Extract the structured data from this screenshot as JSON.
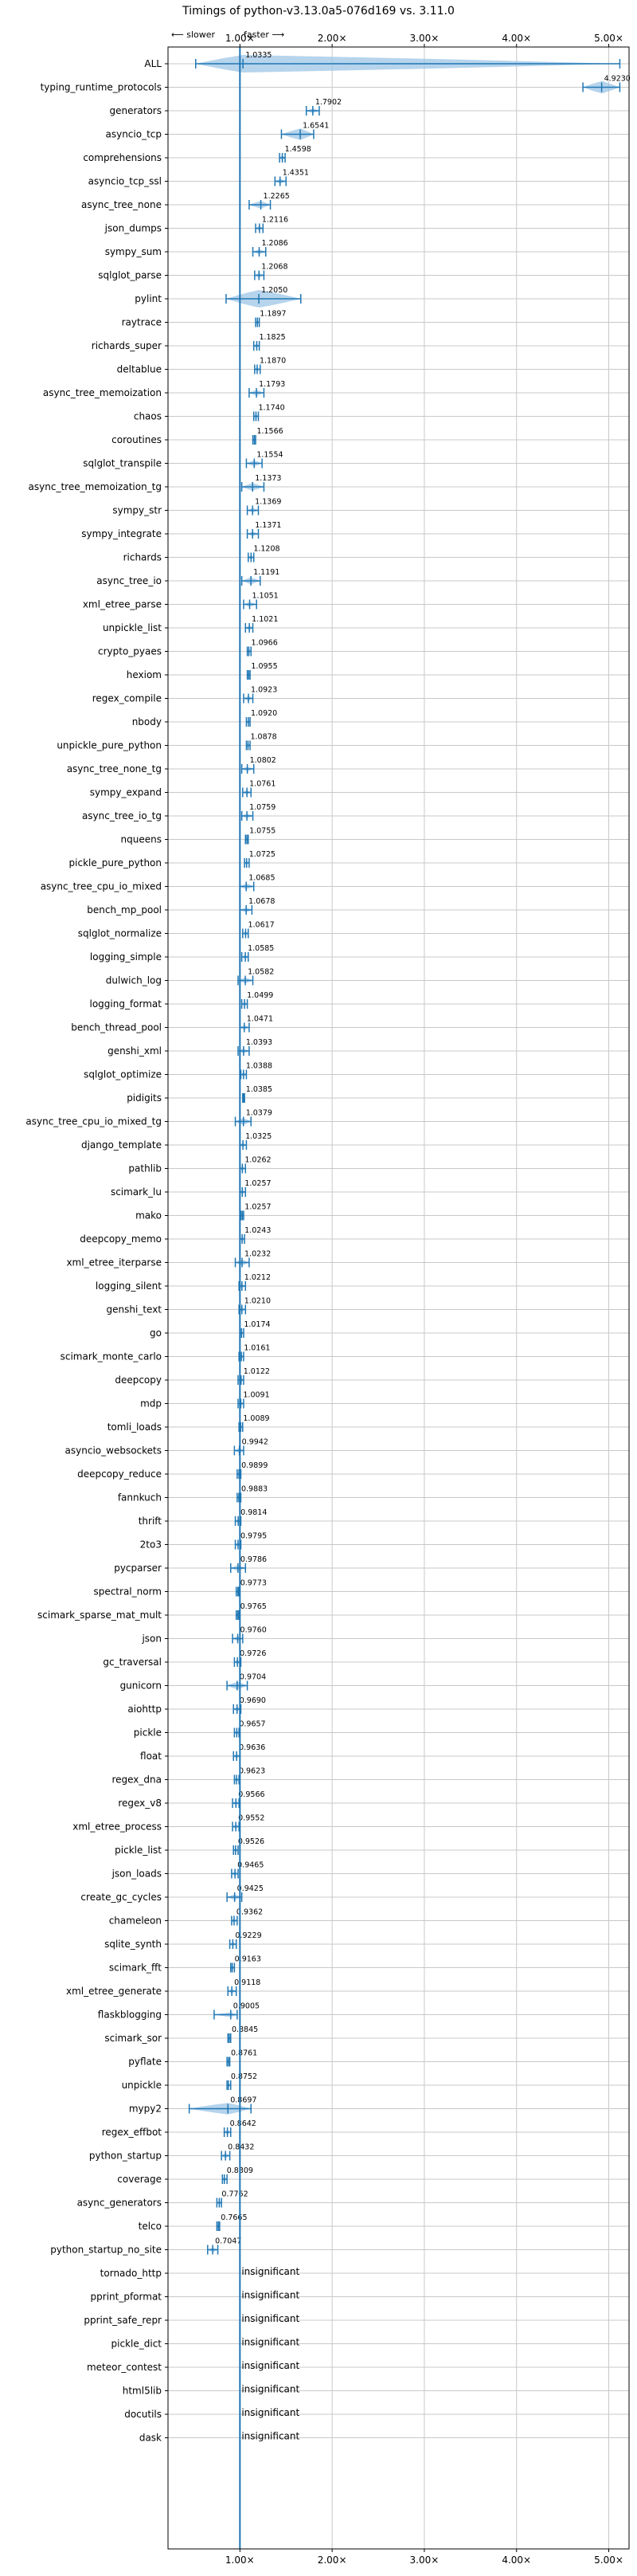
{
  "chart_data": {
    "type": "violin",
    "title": "Timings of python-v3.13.0a5-076d169 vs. 3.11.0",
    "direction_labels": {
      "slower": "⟵ slower",
      "faster": "faster ⟶"
    },
    "xlim": [
      0.22,
      5.22
    ],
    "x_ticks": [
      1,
      2,
      3,
      4,
      5
    ],
    "x_tick_labels": [
      "1.00×",
      "2.00×",
      "3.00×",
      "4.00×",
      "5.00×"
    ],
    "grid": true,
    "reference_line": 1.0,
    "insignificant_label": "insignificant",
    "benchmarks": [
      {
        "name": "ALL",
        "value": 1.0335,
        "label": "1.0335",
        "lo": 0.52,
        "hi": 5.12,
        "spread": 0.45
      },
      {
        "name": "typing_runtime_protocols",
        "value": 4.923,
        "label": "4.9230",
        "lo": 4.72,
        "hi": 5.12,
        "spread": 0.13
      },
      {
        "name": "generators",
        "value": 1.7902,
        "label": "1.7902",
        "lo": 1.72,
        "hi": 1.86,
        "spread": 0.05
      },
      {
        "name": "asyncio_tcp",
        "value": 1.6541,
        "label": "1.6541",
        "lo": 1.45,
        "hi": 1.8,
        "spread": 0.12
      },
      {
        "name": "comprehensions",
        "value": 1.4598,
        "label": "1.4598",
        "lo": 1.43,
        "hi": 1.49,
        "spread": 0.03
      },
      {
        "name": "asyncio_tcp_ssl",
        "value": 1.4351,
        "label": "1.4351",
        "lo": 1.38,
        "hi": 1.5,
        "spread": 0.05
      },
      {
        "name": "async_tree_none",
        "value": 1.2265,
        "label": "1.2265",
        "lo": 1.1,
        "hi": 1.33,
        "spread": 0.08
      },
      {
        "name": "json_dumps",
        "value": 1.2116,
        "label": "1.2116",
        "lo": 1.17,
        "hi": 1.25,
        "spread": 0.04
      },
      {
        "name": "sympy_sum",
        "value": 1.2086,
        "label": "1.2086",
        "lo": 1.14,
        "hi": 1.28,
        "spread": 0.05
      },
      {
        "name": "sqlglot_parse",
        "value": 1.2068,
        "label": "1.2068",
        "lo": 1.16,
        "hi": 1.26,
        "spread": 0.04
      },
      {
        "name": "pylint",
        "value": 1.205,
        "label": "1.2050",
        "lo": 0.85,
        "hi": 1.66,
        "spread": 0.3
      },
      {
        "name": "raytrace",
        "value": 1.1897,
        "label": "1.1897",
        "lo": 1.17,
        "hi": 1.21,
        "spread": 0.02
      },
      {
        "name": "richards_super",
        "value": 1.1825,
        "label": "1.1825",
        "lo": 1.15,
        "hi": 1.21,
        "spread": 0.03
      },
      {
        "name": "deltablue",
        "value": 1.187,
        "label": "1.1870",
        "lo": 1.16,
        "hi": 1.22,
        "spread": 0.03
      },
      {
        "name": "async_tree_memoization",
        "value": 1.1793,
        "label": "1.1793",
        "lo": 1.1,
        "hi": 1.26,
        "spread": 0.06
      },
      {
        "name": "chaos",
        "value": 1.174,
        "label": "1.1740",
        "lo": 1.15,
        "hi": 1.2,
        "spread": 0.03
      },
      {
        "name": "coroutines",
        "value": 1.1566,
        "label": "1.1566",
        "lo": 1.14,
        "hi": 1.17,
        "spread": 0.02
      },
      {
        "name": "sqlglot_transpile",
        "value": 1.1554,
        "label": "1.1554",
        "lo": 1.07,
        "hi": 1.24,
        "spread": 0.06
      },
      {
        "name": "async_tree_memoization_tg",
        "value": 1.1373,
        "label": "1.1373",
        "lo": 1.02,
        "hi": 1.26,
        "spread": 0.08
      },
      {
        "name": "sympy_str",
        "value": 1.1369,
        "label": "1.1369",
        "lo": 1.08,
        "hi": 1.2,
        "spread": 0.04
      },
      {
        "name": "sympy_integrate",
        "value": 1.1371,
        "label": "1.1371",
        "lo": 1.08,
        "hi": 1.2,
        "spread": 0.04
      },
      {
        "name": "richards",
        "value": 1.1208,
        "label": "1.1208",
        "lo": 1.09,
        "hi": 1.15,
        "spread": 0.03
      },
      {
        "name": "async_tree_io",
        "value": 1.1191,
        "label": "1.1191",
        "lo": 1.02,
        "hi": 1.22,
        "spread": 0.07
      },
      {
        "name": "xml_etree_parse",
        "value": 1.1051,
        "label": "1.1051",
        "lo": 1.04,
        "hi": 1.18,
        "spread": 0.05
      },
      {
        "name": "unpickle_list",
        "value": 1.1021,
        "label": "1.1021",
        "lo": 1.06,
        "hi": 1.14,
        "spread": 0.03
      },
      {
        "name": "crypto_pyaes",
        "value": 1.0966,
        "label": "1.0966",
        "lo": 1.08,
        "hi": 1.12,
        "spread": 0.02
      },
      {
        "name": "hexiom",
        "value": 1.0955,
        "label": "1.0955",
        "lo": 1.08,
        "hi": 1.11,
        "spread": 0.02
      },
      {
        "name": "regex_compile",
        "value": 1.0923,
        "label": "1.0923",
        "lo": 1.04,
        "hi": 1.14,
        "spread": 0.04
      },
      {
        "name": "nbody",
        "value": 1.092,
        "label": "1.0920",
        "lo": 1.07,
        "hi": 1.11,
        "spread": 0.02
      },
      {
        "name": "unpickle_pure_python",
        "value": 1.0878,
        "label": "1.0878",
        "lo": 1.07,
        "hi": 1.11,
        "spread": 0.02
      },
      {
        "name": "async_tree_none_tg",
        "value": 1.0802,
        "label": "1.0802",
        "lo": 1.02,
        "hi": 1.15,
        "spread": 0.05
      },
      {
        "name": "sympy_expand",
        "value": 1.0761,
        "label": "1.0761",
        "lo": 1.03,
        "hi": 1.12,
        "spread": 0.04
      },
      {
        "name": "async_tree_io_tg",
        "value": 1.0759,
        "label": "1.0759",
        "lo": 1.02,
        "hi": 1.14,
        "spread": 0.05
      },
      {
        "name": "nqueens",
        "value": 1.0755,
        "label": "1.0755",
        "lo": 1.06,
        "hi": 1.09,
        "spread": 0.02
      },
      {
        "name": "pickle_pure_python",
        "value": 1.0725,
        "label": "1.0725",
        "lo": 1.05,
        "hi": 1.1,
        "spread": 0.02
      },
      {
        "name": "async_tree_cpu_io_mixed",
        "value": 1.0685,
        "label": "1.0685",
        "lo": 1.0,
        "hi": 1.15,
        "spread": 0.06
      },
      {
        "name": "bench_mp_pool",
        "value": 1.0678,
        "label": "1.0678",
        "lo": 1.0,
        "hi": 1.13,
        "spread": 0.05
      },
      {
        "name": "sqlglot_normalize",
        "value": 1.0617,
        "label": "1.0617",
        "lo": 1.03,
        "hi": 1.09,
        "spread": 0.03
      },
      {
        "name": "logging_simple",
        "value": 1.0585,
        "label": "1.0585",
        "lo": 1.02,
        "hi": 1.09,
        "spread": 0.03
      },
      {
        "name": "dulwich_log",
        "value": 1.0582,
        "label": "1.0582",
        "lo": 0.98,
        "hi": 1.14,
        "spread": 0.06
      },
      {
        "name": "logging_format",
        "value": 1.0499,
        "label": "1.0499",
        "lo": 1.02,
        "hi": 1.08,
        "spread": 0.03
      },
      {
        "name": "bench_thread_pool",
        "value": 1.0471,
        "label": "1.0471",
        "lo": 1.0,
        "hi": 1.1,
        "spread": 0.04
      },
      {
        "name": "genshi_xml",
        "value": 1.0393,
        "label": "1.0393",
        "lo": 0.98,
        "hi": 1.1,
        "spread": 0.05
      },
      {
        "name": "sqlglot_optimize",
        "value": 1.0388,
        "label": "1.0388",
        "lo": 1.01,
        "hi": 1.07,
        "spread": 0.03
      },
      {
        "name": "pidigits",
        "value": 1.0385,
        "label": "1.0385",
        "lo": 1.03,
        "hi": 1.05,
        "spread": 0.01
      },
      {
        "name": "async_tree_cpu_io_mixed_tg",
        "value": 1.0379,
        "label": "1.0379",
        "lo": 0.95,
        "hi": 1.12,
        "spread": 0.07
      },
      {
        "name": "django_template",
        "value": 1.0325,
        "label": "1.0325",
        "lo": 1.0,
        "hi": 1.07,
        "spread": 0.03
      },
      {
        "name": "pathlib",
        "value": 1.0262,
        "label": "1.0262",
        "lo": 1.0,
        "hi": 1.06,
        "spread": 0.03
      },
      {
        "name": "scimark_lu",
        "value": 1.0257,
        "label": "1.0257",
        "lo": 1.0,
        "hi": 1.06,
        "spread": 0.03
      },
      {
        "name": "mako",
        "value": 1.0257,
        "label": "1.0257",
        "lo": 1.01,
        "hi": 1.04,
        "spread": 0.02
      },
      {
        "name": "deepcopy_memo",
        "value": 1.0243,
        "label": "1.0243",
        "lo": 1.0,
        "hi": 1.05,
        "spread": 0.02
      },
      {
        "name": "xml_etree_iterparse",
        "value": 1.0232,
        "label": "1.0232",
        "lo": 0.95,
        "hi": 1.1,
        "spread": 0.06
      },
      {
        "name": "logging_silent",
        "value": 1.0212,
        "label": "1.0212",
        "lo": 0.99,
        "hi": 1.06,
        "spread": 0.03
      },
      {
        "name": "genshi_text",
        "value": 1.021,
        "label": "1.0210",
        "lo": 0.99,
        "hi": 1.06,
        "spread": 0.03
      },
      {
        "name": "go",
        "value": 1.0174,
        "label": "1.0174",
        "lo": 1.0,
        "hi": 1.04,
        "spread": 0.02
      },
      {
        "name": "scimark_monte_carlo",
        "value": 1.0161,
        "label": "1.0161",
        "lo": 0.99,
        "hi": 1.04,
        "spread": 0.02
      },
      {
        "name": "deepcopy",
        "value": 1.0122,
        "label": "1.0122",
        "lo": 0.98,
        "hi": 1.04,
        "spread": 0.03
      },
      {
        "name": "mdp",
        "value": 1.0091,
        "label": "1.0091",
        "lo": 0.98,
        "hi": 1.04,
        "spread": 0.03
      },
      {
        "name": "tomli_loads",
        "value": 1.0089,
        "label": "1.0089",
        "lo": 0.99,
        "hi": 1.03,
        "spread": 0.02
      },
      {
        "name": "asyncio_websockets",
        "value": 0.9942,
        "label": "0.9942",
        "lo": 0.94,
        "hi": 1.04,
        "spread": 0.04
      },
      {
        "name": "deepcopy_reduce",
        "value": 0.9899,
        "label": "0.9899",
        "lo": 0.97,
        "hi": 1.01,
        "spread": 0.02
      },
      {
        "name": "fannkuch",
        "value": 0.9883,
        "label": "0.9883",
        "lo": 0.97,
        "hi": 1.01,
        "spread": 0.02
      },
      {
        "name": "thrift",
        "value": 0.9814,
        "label": "0.9814",
        "lo": 0.95,
        "hi": 1.01,
        "spread": 0.03
      },
      {
        "name": "2to3",
        "value": 0.9795,
        "label": "0.9795",
        "lo": 0.95,
        "hi": 1.01,
        "spread": 0.03
      },
      {
        "name": "pycparser",
        "value": 0.9786,
        "label": "0.9786",
        "lo": 0.9,
        "hi": 1.06,
        "spread": 0.06
      },
      {
        "name": "spectral_norm",
        "value": 0.9773,
        "label": "0.9773",
        "lo": 0.96,
        "hi": 0.99,
        "spread": 0.02
      },
      {
        "name": "scimark_sparse_mat_mult",
        "value": 0.9765,
        "label": "0.9765",
        "lo": 0.96,
        "hi": 0.99,
        "spread": 0.02
      },
      {
        "name": "json",
        "value": 0.976,
        "label": "0.9760",
        "lo": 0.92,
        "hi": 1.03,
        "spread": 0.04
      },
      {
        "name": "gc_traversal",
        "value": 0.9726,
        "label": "0.9726",
        "lo": 0.94,
        "hi": 1.01,
        "spread": 0.03
      },
      {
        "name": "gunicorn",
        "value": 0.9704,
        "label": "0.9704",
        "lo": 0.86,
        "hi": 1.08,
        "spread": 0.08
      },
      {
        "name": "aiohttp",
        "value": 0.969,
        "label": "0.9690",
        "lo": 0.93,
        "hi": 1.01,
        "spread": 0.03
      },
      {
        "name": "pickle",
        "value": 0.9657,
        "label": "0.9657",
        "lo": 0.94,
        "hi": 0.99,
        "spread": 0.02
      },
      {
        "name": "float",
        "value": 0.9636,
        "label": "0.9636",
        "lo": 0.93,
        "hi": 1.0,
        "spread": 0.03
      },
      {
        "name": "regex_dna",
        "value": 0.9623,
        "label": "0.9623",
        "lo": 0.94,
        "hi": 0.99,
        "spread": 0.02
      },
      {
        "name": "regex_v8",
        "value": 0.9566,
        "label": "0.9566",
        "lo": 0.92,
        "hi": 0.99,
        "spread": 0.03
      },
      {
        "name": "xml_etree_process",
        "value": 0.9552,
        "label": "0.9552",
        "lo": 0.92,
        "hi": 0.99,
        "spread": 0.03
      },
      {
        "name": "pickle_list",
        "value": 0.9526,
        "label": "0.9526",
        "lo": 0.93,
        "hi": 0.98,
        "spread": 0.02
      },
      {
        "name": "json_loads",
        "value": 0.9465,
        "label": "0.9465",
        "lo": 0.91,
        "hi": 0.98,
        "spread": 0.03
      },
      {
        "name": "create_gc_cycles",
        "value": 0.9425,
        "label": "0.9425",
        "lo": 0.86,
        "hi": 1.02,
        "spread": 0.06
      },
      {
        "name": "chameleon",
        "value": 0.9362,
        "label": "0.9362",
        "lo": 0.91,
        "hi": 0.97,
        "spread": 0.02
      },
      {
        "name": "sqlite_synth",
        "value": 0.9229,
        "label": "0.9229",
        "lo": 0.89,
        "hi": 0.96,
        "spread": 0.03
      },
      {
        "name": "scimark_fft",
        "value": 0.9163,
        "label": "0.9163",
        "lo": 0.9,
        "hi": 0.94,
        "spread": 0.02
      },
      {
        "name": "xml_etree_generate",
        "value": 0.9118,
        "label": "0.9118",
        "lo": 0.87,
        "hi": 0.96,
        "spread": 0.03
      },
      {
        "name": "flaskblogging",
        "value": 0.9005,
        "label": "0.9005",
        "lo": 0.72,
        "hi": 0.97,
        "spread": 0.04
      },
      {
        "name": "scimark_sor",
        "value": 0.8845,
        "label": "0.8845",
        "lo": 0.87,
        "hi": 0.9,
        "spread": 0.02
      },
      {
        "name": "pyflate",
        "value": 0.8761,
        "label": "0.8761",
        "lo": 0.86,
        "hi": 0.89,
        "spread": 0.02
      },
      {
        "name": "unpickle",
        "value": 0.8752,
        "label": "0.8752",
        "lo": 0.86,
        "hi": 0.9,
        "spread": 0.02
      },
      {
        "name": "mypy2",
        "value": 0.8697,
        "label": "0.8697",
        "lo": 0.45,
        "hi": 1.12,
        "spread": 0.12
      },
      {
        "name": "regex_effbot",
        "value": 0.8642,
        "label": "0.8642",
        "lo": 0.83,
        "hi": 0.9,
        "spread": 0.03
      },
      {
        "name": "python_startup",
        "value": 0.8432,
        "label": "0.8432",
        "lo": 0.8,
        "hi": 0.89,
        "spread": 0.03
      },
      {
        "name": "coverage",
        "value": 0.8309,
        "label": "0.8309",
        "lo": 0.81,
        "hi": 0.86,
        "spread": 0.02
      },
      {
        "name": "async_generators",
        "value": 0.7762,
        "label": "0.7762",
        "lo": 0.75,
        "hi": 0.8,
        "spread": 0.02
      },
      {
        "name": "telco",
        "value": 0.7665,
        "label": "0.7665",
        "lo": 0.75,
        "hi": 0.78,
        "spread": 0.01
      },
      {
        "name": "python_startup_no_site",
        "value": 0.7047,
        "label": "0.7047",
        "lo": 0.65,
        "hi": 0.76,
        "spread": 0.04
      },
      {
        "name": "tornado_http",
        "insignificant": true
      },
      {
        "name": "pprint_pformat",
        "insignificant": true
      },
      {
        "name": "pprint_safe_repr",
        "insignificant": true
      },
      {
        "name": "pickle_dict",
        "insignificant": true
      },
      {
        "name": "meteor_contest",
        "insignificant": true
      },
      {
        "name": "html5lib",
        "insignificant": true
      },
      {
        "name": "docutils",
        "insignificant": true
      },
      {
        "name": "dask",
        "insignificant": true
      }
    ]
  }
}
